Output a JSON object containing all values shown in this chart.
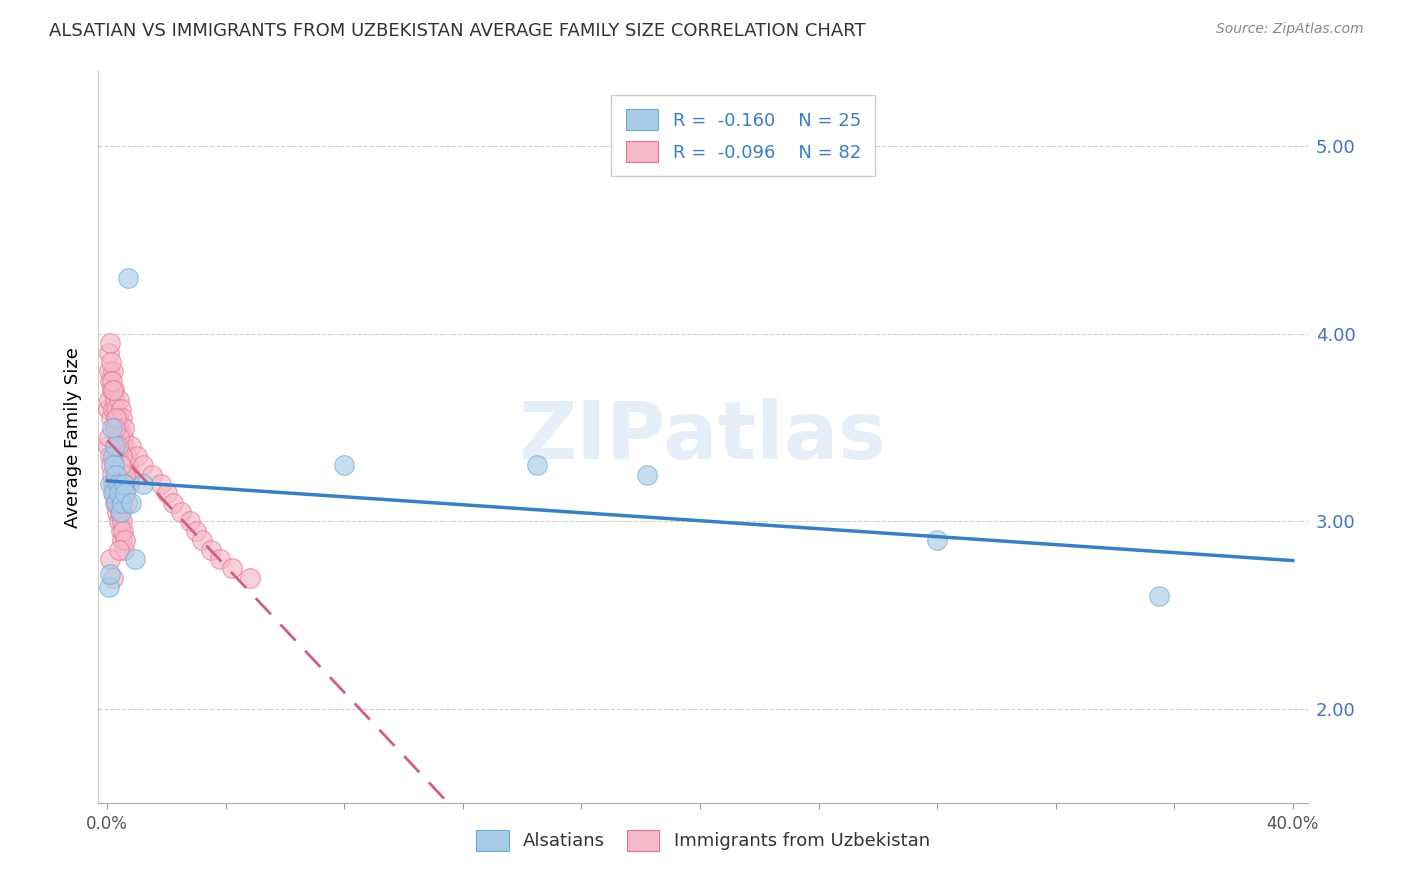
{
  "title": "ALSATIAN VS IMMIGRANTS FROM UZBEKISTAN AVERAGE FAMILY SIZE CORRELATION CHART",
  "source": "Source: ZipAtlas.com",
  "ylabel": "Average Family Size",
  "xlabel_ticks": [
    "0.0%",
    "",
    "",
    "",
    "",
    "",
    "",
    "",
    "",
    "",
    "40.0%"
  ],
  "xlabel_tick_vals": [
    0.0,
    0.04,
    0.08,
    0.12,
    0.16,
    0.2,
    0.24,
    0.28,
    0.32,
    0.36,
    0.4
  ],
  "ytick_vals": [
    2.0,
    3.0,
    4.0,
    5.0
  ],
  "ytick_labels": [
    "2.00",
    "3.00",
    "4.00",
    "5.00"
  ],
  "xlim": [
    -0.003,
    0.405
  ],
  "ylim": [
    1.5,
    5.4
  ],
  "blue_R": -0.16,
  "blue_N": 25,
  "pink_R": -0.096,
  "pink_N": 82,
  "blue_color": "#a8cce8",
  "pink_color": "#f4b8c8",
  "blue_edge_color": "#6aaad6",
  "pink_edge_color": "#e87090",
  "blue_line_color": "#3a7fc4",
  "pink_line_color": "#d06080",
  "legend_label_blue": "Alsatians",
  "legend_label_pink": "Immigrants from Uzbekistan",
  "watermark": "ZIPatlas",
  "blue_scatter_x": [
    0.0005,
    0.0008,
    0.001,
    0.0015,
    0.0018,
    0.002,
    0.0022,
    0.0025,
    0.0028,
    0.003,
    0.0035,
    0.004,
    0.0045,
    0.005,
    0.0055,
    0.006,
    0.007,
    0.008,
    0.0095,
    0.012,
    0.08,
    0.145,
    0.182,
    0.28,
    0.355
  ],
  "blue_scatter_y": [
    2.65,
    2.72,
    3.2,
    3.5,
    3.35,
    3.15,
    3.3,
    3.4,
    3.25,
    3.1,
    3.2,
    3.15,
    3.05,
    3.1,
    3.2,
    3.15,
    4.3,
    3.1,
    2.8,
    3.2,
    3.3,
    3.3,
    3.25,
    2.9,
    2.6
  ],
  "pink_scatter_x": [
    0.0003,
    0.0005,
    0.0007,
    0.001,
    0.0012,
    0.0015,
    0.0018,
    0.002,
    0.0022,
    0.0025,
    0.0028,
    0.003,
    0.0033,
    0.0035,
    0.0038,
    0.004,
    0.0042,
    0.0045,
    0.0048,
    0.005,
    0.0053,
    0.0055,
    0.0058,
    0.006,
    0.0063,
    0.0065,
    0.0068,
    0.007,
    0.0073,
    0.0075,
    0.0003,
    0.0006,
    0.0009,
    0.0012,
    0.0015,
    0.0018,
    0.0021,
    0.0024,
    0.0027,
    0.003,
    0.0033,
    0.0036,
    0.0039,
    0.0042,
    0.0045,
    0.0048,
    0.0051,
    0.0054,
    0.0057,
    0.006,
    0.008,
    0.01,
    0.012,
    0.015,
    0.018,
    0.02,
    0.022,
    0.025,
    0.028,
    0.03,
    0.032,
    0.035,
    0.038,
    0.042,
    0.048,
    0.0005,
    0.0008,
    0.0012,
    0.0016,
    0.002,
    0.003,
    0.004,
    0.005,
    0.006,
    0.0025,
    0.0035,
    0.0045,
    0.0055,
    0.0065,
    0.001,
    0.002,
    0.0038
  ],
  "pink_scatter_y": [
    3.6,
    3.8,
    3.65,
    3.75,
    3.55,
    3.7,
    3.6,
    3.8,
    3.7,
    3.65,
    3.55,
    3.6,
    3.5,
    3.55,
    3.65,
    3.45,
    3.5,
    3.6,
    3.4,
    3.55,
    3.45,
    3.5,
    3.4,
    3.35,
    3.3,
    3.35,
    3.25,
    3.3,
    3.2,
    3.25,
    3.4,
    3.45,
    3.35,
    3.3,
    3.25,
    3.2,
    3.15,
    3.2,
    3.1,
    3.15,
    3.05,
    3.1,
    3.0,
    3.05,
    2.95,
    3.0,
    2.9,
    2.95,
    2.85,
    2.9,
    3.4,
    3.35,
    3.3,
    3.25,
    3.2,
    3.15,
    3.1,
    3.05,
    3.0,
    2.95,
    2.9,
    2.85,
    2.8,
    2.75,
    2.7,
    3.9,
    3.95,
    3.85,
    3.75,
    3.7,
    3.55,
    3.45,
    3.35,
    3.25,
    3.5,
    3.4,
    3.3,
    3.2,
    3.1,
    2.8,
    2.7,
    2.85
  ]
}
